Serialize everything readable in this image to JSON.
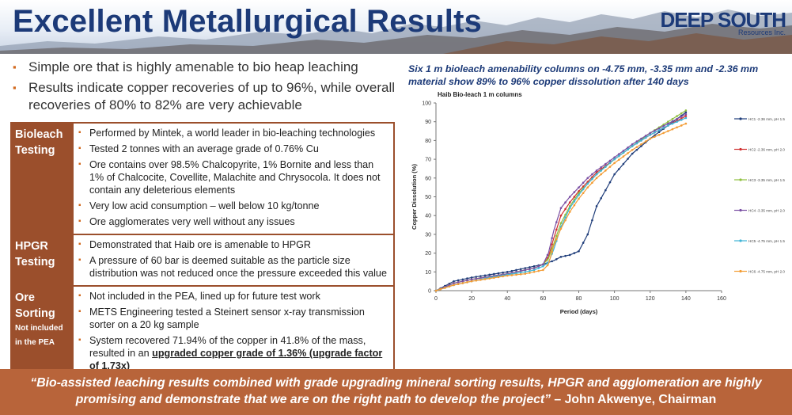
{
  "header": {
    "title": "Excellent Metallurgical Results",
    "logo_main": "DEEP SOUTH",
    "logo_sub": "Resources Inc."
  },
  "intro": {
    "bullets": [
      "Simple ore that is highly amenable to bio heap leaching",
      "Results indicate copper recoveries of up to 96%, while overall recoveries of 80% to 82% are very achievable"
    ]
  },
  "table": {
    "rows": [
      {
        "heading": "Bioleach Testing",
        "sub": "",
        "items": [
          "Performed by Mintek, a world leader in bio-leaching technologies",
          "Tested 2 tonnes with an average grade of 0.76% Cu",
          "Ore contains over 98.5% Chalcopyrite, 1% Bornite and less than 1% of Chalcocite, Covellite, Malachite and Chrysocola. It does not contain any deleterious elements",
          "Very low acid consumption – well below 10 kg/tonne",
          "Ore agglomerates very well without any issues"
        ]
      },
      {
        "heading": "HPGR Testing",
        "sub": "",
        "items": [
          "Demonstrated that Haib ore is amenable to HPGR",
          "A pressure of 60 bar is deemed suitable as the particle size distribution was not reduced once the pressure exceeded this value"
        ]
      },
      {
        "heading": "Ore Sorting",
        "sub": "Not included in the PEA",
        "items": [
          "Not included in the PEA, lined up for future test work",
          "METS Engineering tested a Steinert sensor x-ray transmission sorter on a 20 kg sample"
        ],
        "last_item_pre": "System recovered 71.94% of the copper in 41.8% of the mass, resulted in an ",
        "last_item_highlight": "upgraded copper grade of 1.36% (upgrade factor of 1.73x)"
      }
    ]
  },
  "chart_caption": "Six 1 m bioleach amenability columns on -4.75 mm, -3.35 mm and -2.36 mm material show 89% to 96% copper dissolution after 140 days",
  "chart_data": {
    "type": "line",
    "title": "Haib Bio-leach 1 m columns",
    "xlabel": "Period (days)",
    "ylabel": "Copper Dissolution (%)",
    "xlim": [
      0,
      160
    ],
    "ylim": [
      0,
      100
    ],
    "xticks": [
      0,
      20,
      40,
      60,
      80,
      100,
      120,
      140,
      160
    ],
    "yticks": [
      0,
      10,
      20,
      30,
      40,
      50,
      60,
      70,
      80,
      90,
      100
    ],
    "grid": false,
    "legend_position": "right",
    "x": [
      0,
      10,
      20,
      30,
      40,
      50,
      55,
      60,
      63,
      66,
      70,
      75,
      80,
      85,
      90,
      100,
      110,
      120,
      130,
      140
    ],
    "series": [
      {
        "name": "HC1 -2.36 mm, pH 1.5",
        "color": "#1f3d7a",
        "marker": "diamond",
        "values": [
          0,
          5,
          7,
          8.5,
          10,
          12,
          13,
          14,
          15,
          16,
          18,
          19,
          21,
          30,
          45,
          62,
          73,
          81,
          88,
          95
        ]
      },
      {
        "name": "HC2 -2.36 mm, pH 2.0",
        "color": "#d03030",
        "marker": "square",
        "values": [
          0,
          4,
          6,
          7.5,
          9,
          11,
          12,
          14,
          18,
          28,
          40,
          47,
          53,
          58,
          63,
          70,
          77,
          83,
          88,
          93
        ]
      },
      {
        "name": "HC3 -3.35 mm, pH 1.5",
        "color": "#8fbf3f",
        "marker": "triangle",
        "values": [
          0,
          4,
          6,
          7.5,
          9,
          11,
          12,
          14,
          17,
          25,
          36,
          45,
          52,
          57,
          62,
          70,
          77,
          84,
          90,
          96
        ]
      },
      {
        "name": "HC4 -3.35 mm, pH 2.0",
        "color": "#7a4fa3",
        "marker": "x",
        "values": [
          0,
          4,
          6,
          7.5,
          9,
          11,
          12,
          14,
          20,
          32,
          44,
          50,
          55,
          60,
          64,
          71,
          78,
          84,
          89,
          94
        ]
      },
      {
        "name": "HC5 -4.75 mm, pH 1.5",
        "color": "#3fb4d6",
        "marker": "star",
        "values": [
          0,
          3,
          5,
          7,
          8.5,
          10,
          11,
          13,
          15,
          22,
          34,
          44,
          51,
          57,
          62,
          70,
          77,
          83,
          88,
          92
        ]
      },
      {
        "name": "HC6 -4.75 mm, pH 2.0",
        "color": "#f39c34",
        "marker": "circle",
        "values": [
          0,
          3,
          5,
          6.5,
          8,
          9,
          10,
          11,
          14,
          24,
          33,
          42,
          49,
          55,
          60,
          68,
          75,
          81,
          85,
          89
        ]
      }
    ]
  },
  "footer": {
    "quote": "“Bio-assisted leaching results combined with grade upgrading mineral sorting results, HPGR and agglomeration are highly promising and demonstrate that we are on the right path to develop the project”",
    "attribution": " – John Akwenye, Chairman"
  }
}
